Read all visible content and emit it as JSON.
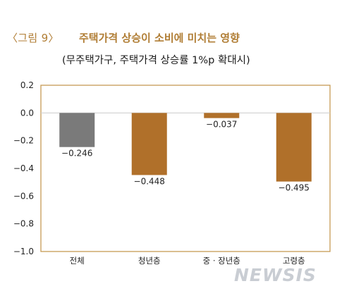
{
  "header": {
    "figure_label": "〈그림 9〉",
    "title": "주택가격 상승이 소비에 미치는 영향",
    "subtitle": "(무주택가구, 주택가격 상승률 1%p 확대시)"
  },
  "chart_data": {
    "type": "bar",
    "title": "주택가격 상승이 소비에 미치는 영향",
    "subtitle": "(무주택가구, 주택가격 상승률 1%p 확대시)",
    "categories": [
      "전체",
      "청년층",
      "중 · 장년층",
      "고령층"
    ],
    "values": [
      -0.246,
      -0.448,
      -0.037,
      -0.495
    ],
    "value_labels": [
      "−0.246",
      "−0.448",
      "−0.037",
      "−0.495"
    ],
    "bar_colors": [
      "#7a7a7a",
      "#b0702a",
      "#b0702a",
      "#b0702a"
    ],
    "ylim": [
      -1.0,
      0.2
    ],
    "yticks": [
      0.2,
      0.0,
      -0.2,
      -0.4,
      -0.6,
      -0.8,
      -1.0
    ],
    "ytick_labels": [
      "0.2",
      "0.0",
      "−0.2",
      "−0.4",
      "−0.6",
      "−0.8",
      "−1.0"
    ],
    "xlabel": "",
    "ylabel": "",
    "grid": false,
    "frame_color": "#c79a55",
    "zero_line_color": "#cfcfcf"
  },
  "watermark": "NEWSIS"
}
